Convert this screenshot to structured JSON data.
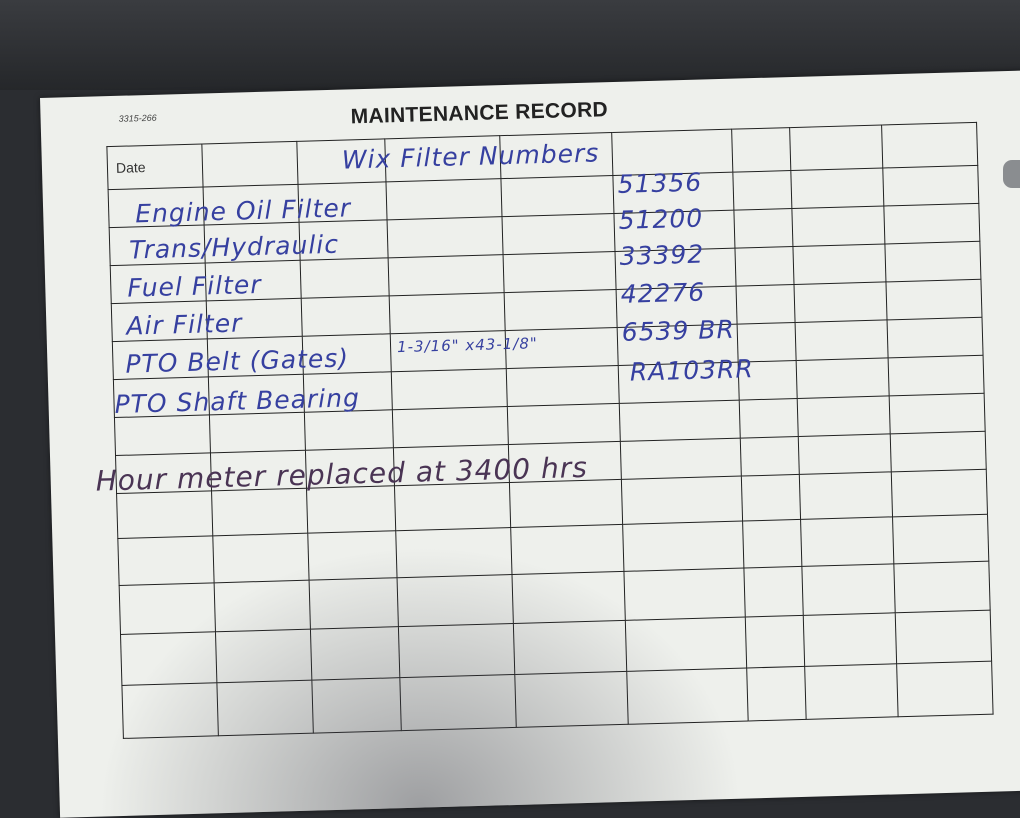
{
  "form": {
    "code": "3315-266",
    "title": "MAINTENANCE RECORD",
    "date_header": "Date"
  },
  "handwriting": {
    "heading": "Wix Filter Numbers",
    "rows": [
      {
        "item": "Engine Oil Filter",
        "number": "51356"
      },
      {
        "item": "Trans/Hydraulic",
        "number": "51200"
      },
      {
        "item": "Fuel Filter",
        "number": "33392"
      },
      {
        "item": "Air Filter",
        "number": "42276"
      },
      {
        "item": "PTO Belt (Gates)",
        "size": "1-3/16\" x43-1/8\"",
        "number": "6539 BR"
      },
      {
        "item": "PTO Shaft Bearing",
        "number": "RA103RR"
      }
    ],
    "note": "Hour meter replaced at 3400 hrs"
  },
  "colors": {
    "blue_ink": "#3640a0",
    "purple_ink": "#4a3454",
    "paper": "#eef0ec"
  }
}
